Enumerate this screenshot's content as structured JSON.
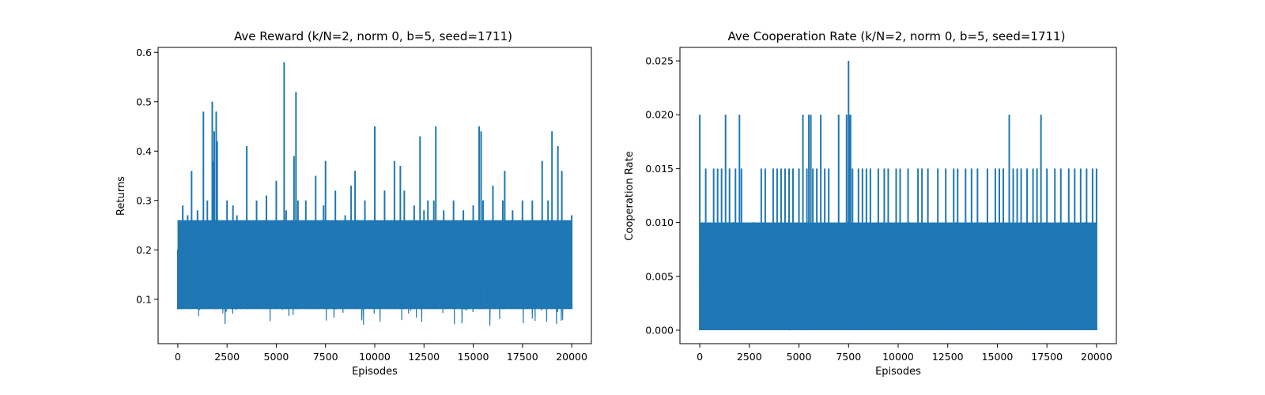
{
  "chart_data": [
    {
      "type": "line",
      "title": "Ave Reward (k/N=2, norm 0, b=5, seed=1711)",
      "xlabel": "Episodes",
      "ylabel": "Returns",
      "xlim": [
        -1000,
        21000
      ],
      "ylim": [
        0.01,
        0.61
      ],
      "xticks": [
        0,
        2500,
        5000,
        7500,
        10000,
        12500,
        15000,
        17500,
        20000
      ],
      "xtick_labels": [
        "0",
        "2500",
        "5000",
        "7500",
        "10000",
        "12500",
        "15000",
        "17500",
        "20000"
      ],
      "yticks": [
        0.1,
        0.2,
        0.3,
        0.4,
        0.5,
        0.6
      ],
      "ytick_labels": [
        "0.1",
        "0.2",
        "0.3",
        "0.4",
        "0.5",
        "0.6"
      ],
      "grid": false,
      "color": "#1f77b4",
      "series": [
        {
          "x": [
            0,
            25,
            50,
            75,
            100,
            250,
            500,
            700,
            1000,
            1300,
            1350,
            1500,
            1750,
            1800,
            1850,
            1900,
            1950,
            2000,
            2500,
            2800,
            3000,
            3500,
            4000,
            4500,
            5000,
            5300,
            5400,
            5500,
            5900,
            6000,
            6100,
            6500,
            7000,
            7400,
            7500,
            8000,
            8500,
            8800,
            9000,
            9500,
            10000,
            10500,
            11000,
            11300,
            11500,
            12000,
            12300,
            12500,
            12700,
            13000,
            13100,
            13500,
            14000,
            14500,
            15000,
            15300,
            15400,
            15500,
            16000,
            16500,
            16600,
            17000,
            17500,
            18000,
            18500,
            18800,
            19000,
            19300,
            19500,
            20000
          ],
          "y": [
            0.2,
            0.26,
            0.09,
            0.24,
            0.15,
            0.29,
            0.27,
            0.36,
            0.28,
            0.48,
            0.22,
            0.3,
            0.5,
            0.38,
            0.44,
            0.26,
            0.48,
            0.42,
            0.3,
            0.29,
            0.27,
            0.41,
            0.3,
            0.31,
            0.34,
            0.26,
            0.58,
            0.28,
            0.39,
            0.52,
            0.3,
            0.3,
            0.35,
            0.29,
            0.38,
            0.32,
            0.27,
            0.33,
            0.36,
            0.3,
            0.45,
            0.32,
            0.38,
            0.37,
            0.32,
            0.29,
            0.43,
            0.28,
            0.3,
            0.3,
            0.45,
            0.28,
            0.3,
            0.28,
            0.29,
            0.45,
            0.44,
            0.3,
            0.33,
            0.3,
            0.36,
            0.28,
            0.3,
            0.3,
            0.38,
            0.3,
            0.44,
            0.41,
            0.36,
            0.27
          ],
          "band_low": 0.08,
          "band_high": 0.26,
          "min_spikes": 0.04
        }
      ]
    },
    {
      "type": "line",
      "title": "Ave Cooperation Rate (k/N=2, norm 0, b=5, seed=1711)",
      "xlabel": "Episodes",
      "ylabel": "Cooperation Rate",
      "xlim": [
        -1000,
        21000
      ],
      "ylim": [
        -0.00125,
        0.02625
      ],
      "xticks": [
        0,
        2500,
        5000,
        7500,
        10000,
        12500,
        15000,
        17500,
        20000
      ],
      "xtick_labels": [
        "0",
        "2500",
        "5000",
        "7500",
        "10000",
        "12500",
        "15000",
        "17500",
        "20000"
      ],
      "yticks": [
        0.0,
        0.005,
        0.01,
        0.015,
        0.02,
        0.025
      ],
      "ytick_labels": [
        "0.000",
        "0.005",
        "0.010",
        "0.015",
        "0.020",
        "0.025"
      ],
      "grid": false,
      "color": "#1f77b4",
      "series": [
        {
          "x": [
            0,
            100,
            300,
            500,
            700,
            900,
            1100,
            1300,
            1500,
            1800,
            2000,
            2100,
            2400,
            2700,
            3100,
            3300,
            3700,
            3900,
            4100,
            4300,
            4500,
            4700,
            5000,
            5200,
            5400,
            5500,
            5600,
            5700,
            5900,
            6100,
            6300,
            6500,
            7000,
            7400,
            7500,
            7550,
            7600,
            7700,
            8000,
            8200,
            8400,
            8600,
            9000,
            9300,
            9500,
            9900,
            10100,
            10500,
            11000,
            11200,
            11500,
            12000,
            12400,
            12800,
            13000,
            13400,
            13700,
            14000,
            14500,
            14900,
            15100,
            15300,
            15600,
            15800,
            16000,
            16200,
            16500,
            16800,
            17000,
            17200,
            17500,
            17900,
            18200,
            18600,
            18900,
            19200,
            19500,
            19800,
            20000
          ],
          "y": [
            0.02,
            0.01,
            0.015,
            0.01,
            0.015,
            0.015,
            0.015,
            0.02,
            0.015,
            0.015,
            0.02,
            0.015,
            0.01,
            0.01,
            0.015,
            0.015,
            0.015,
            0.015,
            0.015,
            0.015,
            0.015,
            0.015,
            0.015,
            0.02,
            0.015,
            0.02,
            0.02,
            0.015,
            0.015,
            0.02,
            0.015,
            0.015,
            0.02,
            0.02,
            0.025,
            0.02,
            0.02,
            0.015,
            0.015,
            0.015,
            0.015,
            0.015,
            0.015,
            0.015,
            0.015,
            0.015,
            0.015,
            0.015,
            0.015,
            0.015,
            0.015,
            0.015,
            0.015,
            0.015,
            0.015,
            0.015,
            0.015,
            0.015,
            0.015,
            0.015,
            0.015,
            0.015,
            0.02,
            0.015,
            0.015,
            0.015,
            0.015,
            0.015,
            0.015,
            0.02,
            0.015,
            0.015,
            0.015,
            0.015,
            0.015,
            0.015,
            0.015,
            0.015,
            0.015
          ],
          "band_low": 0.0,
          "band_high": 0.01
        }
      ]
    }
  ]
}
